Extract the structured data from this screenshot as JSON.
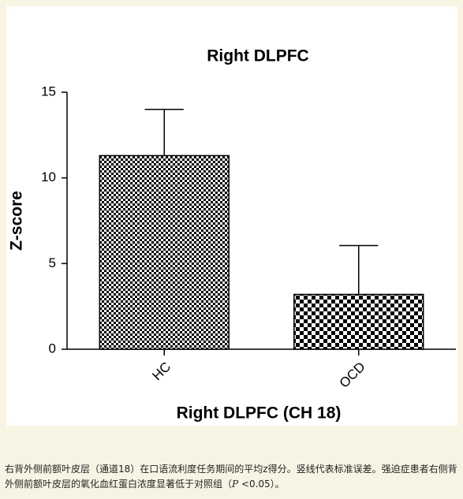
{
  "chart_data": {
    "type": "bar",
    "title": "Right DLPFC",
    "x_label": "Right DLPFC (CH 18)",
    "y_label": "Z-score",
    "categories": [
      "HC",
      "OCD"
    ],
    "values": [
      11.3,
      3.2
    ],
    "errors": [
      2.7,
      2.85
    ],
    "color": "#000000",
    "ylim": [
      0,
      15
    ],
    "yticks": [
      0,
      5,
      10,
      15
    ],
    "grid": false
  },
  "caption": [
    "右背外侧前额叶皮层（通道18）在口语流利度任务期间的平均z得分。竖线代表标准误差。强迫症患者右侧背外侧前额叶皮层的氧化血红蛋白浓度显著低于对照组（",
    "P",
    " <0.05）。"
  ]
}
